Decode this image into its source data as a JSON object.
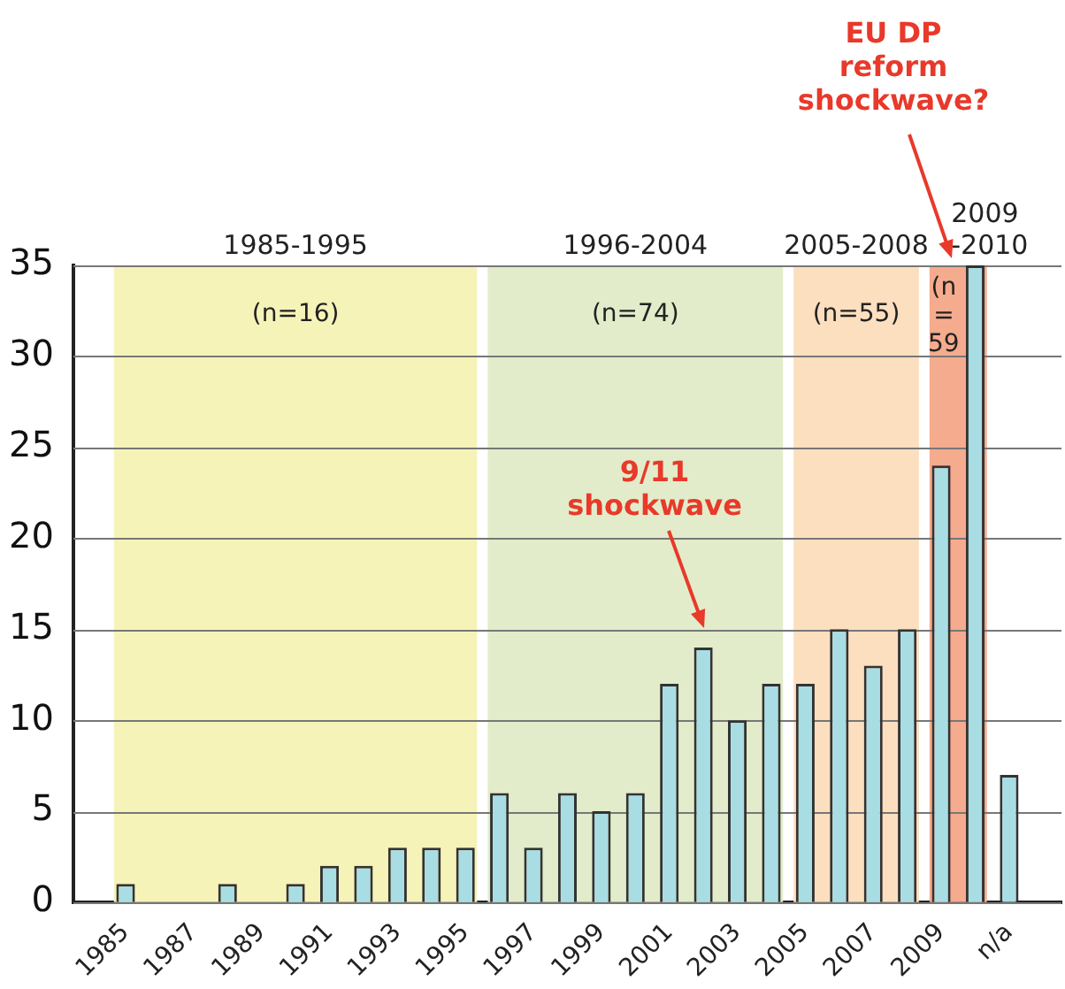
{
  "chart_data": {
    "type": "bar",
    "x": [
      1985,
      1986,
      1987,
      1988,
      1989,
      1990,
      1991,
      1992,
      1993,
      1994,
      1995,
      1996,
      1997,
      1998,
      1999,
      2000,
      2001,
      2002,
      2003,
      2004,
      2005,
      2006,
      2007,
      2008,
      2009,
      2010,
      2011
    ],
    "values": [
      1,
      0,
      0,
      1,
      0,
      1,
      2,
      2,
      3,
      3,
      3,
      6,
      3,
      6,
      5,
      6,
      12,
      14,
      10,
      12,
      12,
      15,
      13,
      15,
      24,
      35,
      7
    ],
    "color": "#a9dde4",
    "xlim": [
      1984.5,
      2011.5
    ],
    "xticks": [
      1985,
      1987,
      1989,
      1991,
      1993,
      1995,
      1997,
      1999,
      2001,
      2003,
      2005,
      2007,
      2009,
      {
        "value": 2011,
        "label": "n/a"
      }
    ],
    "ylim": [
      0,
      35
    ],
    "yticks": [
      0,
      5,
      10,
      15,
      20,
      25,
      30,
      35
    ],
    "grid": "y",
    "bands": [
      {
        "axis": "x",
        "from": 1984.5,
        "to": 1995.5,
        "label": "1985-1995",
        "color": "#f6f3b9"
      },
      {
        "axis": "x",
        "from": 1995.5,
        "to": 2004.5,
        "label": "1996-2004",
        "color": "#e2ecca"
      },
      {
        "axis": "x",
        "from": 2004.5,
        "to": 2008.5,
        "label": "2005-2008",
        "color": "#fbdfbf"
      },
      {
        "axis": "x",
        "from": 2008.5,
        "to": 2010.5,
        "label": "2009 -2010",
        "color": "#f5ab8d"
      }
    ],
    "annotations": [
      "(n=16)",
      "(n=74)",
      "(n=55)",
      "(n = 59",
      "9/11 shockwave",
      "EU DP reform shockwave?"
    ]
  }
}
